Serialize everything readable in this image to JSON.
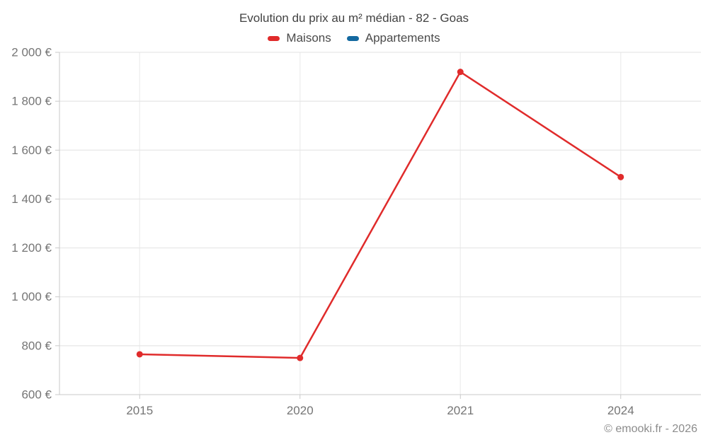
{
  "title": "Evolution du prix au m² médian - 82 - Goas",
  "legend": {
    "items": [
      {
        "label": "Maisons",
        "color": "#e02b2b"
      },
      {
        "label": "Appartements",
        "color": "#1469a0"
      }
    ]
  },
  "footer": {
    "copyright": "© emooki.fr - 2026"
  },
  "colors": {
    "maisons": "#e02b2b",
    "appartements": "#1469a0",
    "axis_line": "#c9c9c9",
    "gridline": "#e6e6e6",
    "vertical_gridline": "#ededed",
    "tick_label": "#757575"
  },
  "chart_data": {
    "type": "line",
    "title": "Evolution du prix au m² médian - 82 - Goas",
    "categories": [
      "2015",
      "2020",
      "2021",
      "2024"
    ],
    "series": [
      {
        "name": "Maisons",
        "color": "#e02b2b",
        "values": [
          765,
          750,
          1920,
          1490
        ]
      },
      {
        "name": "Appartements",
        "color": "#1469a0",
        "values": []
      }
    ],
    "xlabel": "",
    "ylabel": "",
    "ylim": [
      600,
      2000
    ],
    "ytick_step": 200,
    "ytick_labels": [
      "600 €",
      "800 €",
      "1 000 €",
      "1 200 €",
      "1 400 €",
      "1 600 €",
      "1 800 €",
      "2 000 €"
    ],
    "grid": true,
    "legend_position": "top"
  }
}
